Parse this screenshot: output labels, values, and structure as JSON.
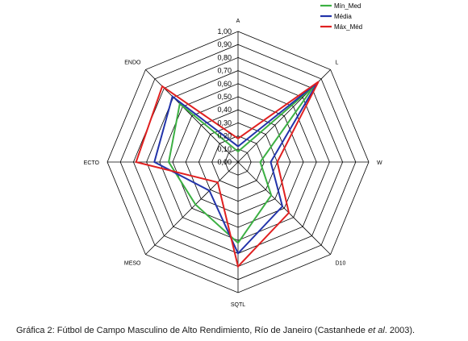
{
  "chart_data": {
    "type": "radar",
    "axes": [
      "A",
      "L",
      "W",
      "D10",
      "SQTL",
      "MESO",
      "ECTO",
      "ENDO"
    ],
    "ticks": [
      "0,00",
      "0,10",
      "0,20",
      "0,30",
      "0,40",
      "0,50",
      "0,60",
      "0,70",
      "0,80",
      "0,90",
      "1,00"
    ],
    "range": [
      0,
      1
    ],
    "legend_position": "top-right",
    "series": [
      {
        "name": "Mín_Med",
        "color": "#3cb043",
        "values": [
          0.08,
          0.82,
          0.17,
          0.36,
          0.62,
          0.46,
          0.53,
          0.63
        ]
      },
      {
        "name": "Média",
        "color": "#2233aa",
        "values": [
          0.12,
          0.86,
          0.25,
          0.48,
          0.7,
          0.31,
          0.64,
          0.71
        ]
      },
      {
        "name": "Máx_Méd",
        "color": "#e02020",
        "values": [
          0.18,
          0.87,
          0.3,
          0.55,
          0.8,
          0.22,
          0.78,
          0.82
        ]
      }
    ]
  },
  "caption": {
    "before": "Gráfica 2: Fútbol de Campo Masculino de Alto Rendimiento, Río de Janeiro (Castanhede ",
    "italic": "et al",
    "after": ". 2003)."
  }
}
